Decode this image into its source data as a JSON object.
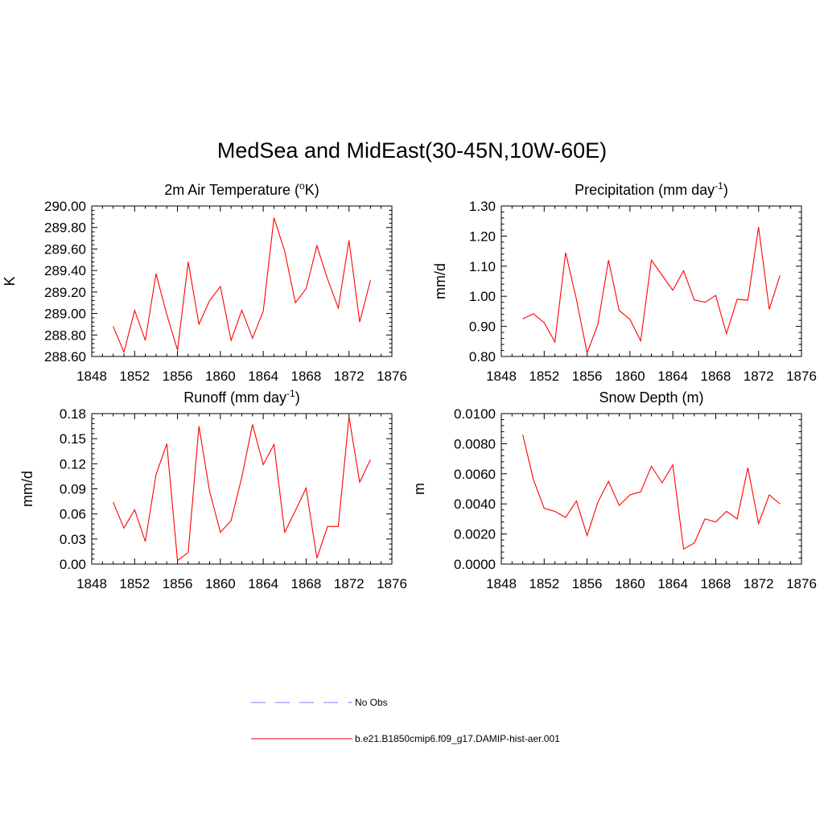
{
  "title": "MedSea and MidEast(30-45N,10W-60E)",
  "line_color": "#ff0000",
  "obs_color": "#9999ff",
  "legend": {
    "obs_label": "No Obs",
    "model_label": "b.e21.B1850cmip6.f09_g17.DAMIP-hist-aer.001"
  },
  "chart_data": [
    {
      "type": "line",
      "title": "2m Air Temperature (",
      "title_unit": "o",
      "title_suffix": "K)",
      "title_sup": "sup",
      "ylabel": "K",
      "xlim": [
        1848,
        1876
      ],
      "xticks": [
        "1848",
        "1852",
        "1856",
        "1860",
        "1864",
        "1868",
        "1872",
        "1876"
      ],
      "ylim": [
        288.6,
        290.0
      ],
      "yticks": [
        "288.60",
        "288.80",
        "289.00",
        "289.20",
        "289.40",
        "289.60",
        "289.80",
        "290.00"
      ],
      "series": [
        {
          "x": [
            1850,
            1851,
            1852,
            1853,
            1854,
            1855,
            1856,
            1857,
            1858,
            1859,
            1860,
            1861,
            1862,
            1863,
            1864,
            1865,
            1866,
            1867,
            1868,
            1869,
            1870,
            1871,
            1872,
            1873,
            1874
          ],
          "values": [
            288.88,
            288.64,
            289.03,
            288.75,
            289.37,
            288.99,
            288.66,
            289.48,
            288.9,
            289.12,
            289.25,
            288.75,
            289.03,
            288.77,
            289.02,
            289.89,
            289.58,
            289.1,
            289.23,
            289.63,
            289.32,
            289.05,
            289.68,
            288.92,
            289.31
          ]
        }
      ]
    },
    {
      "type": "line",
      "title": "Precipitation (mm day",
      "title_unit": "-1",
      "title_suffix": ")",
      "ylabel": "mm/d",
      "xlim": [
        1848,
        1876
      ],
      "xticks": [
        "1848",
        "1852",
        "1856",
        "1860",
        "1864",
        "1868",
        "1872",
        "1876"
      ],
      "ylim": [
        0.8,
        1.3
      ],
      "yticks": [
        "0.80",
        "0.90",
        "1.00",
        "1.10",
        "1.20",
        "1.30"
      ],
      "series": [
        {
          "x": [
            1850,
            1851,
            1852,
            1853,
            1854,
            1855,
            1856,
            1857,
            1858,
            1859,
            1860,
            1861,
            1862,
            1863,
            1864,
            1865,
            1866,
            1867,
            1868,
            1869,
            1870,
            1871,
            1872,
            1873,
            1874
          ],
          "values": [
            0.925,
            0.942,
            0.912,
            0.848,
            1.145,
            0.99,
            0.812,
            0.905,
            1.12,
            0.953,
            0.923,
            0.852,
            1.12,
            1.07,
            1.02,
            1.085,
            0.988,
            0.98,
            1.003,
            0.876,
            0.99,
            0.987,
            1.23,
            0.957,
            1.07
          ]
        }
      ]
    },
    {
      "type": "line",
      "title": "Runoff (mm day",
      "title_unit": "-1",
      "title_suffix": ")",
      "ylabel": "mm/d",
      "xlim": [
        1848,
        1876
      ],
      "xticks": [
        "1848",
        "1852",
        "1856",
        "1860",
        "1864",
        "1868",
        "1872",
        "1876"
      ],
      "ylim": [
        0.0,
        0.18
      ],
      "yticks": [
        "0.00",
        "0.03",
        "0.06",
        "0.09",
        "0.12",
        "0.15",
        "0.18"
      ],
      "series": [
        {
          "x": [
            1850,
            1851,
            1852,
            1853,
            1854,
            1855,
            1856,
            1857,
            1858,
            1859,
            1860,
            1861,
            1862,
            1863,
            1864,
            1865,
            1866,
            1867,
            1868,
            1869,
            1870,
            1871,
            1872,
            1873,
            1874
          ],
          "values": [
            0.074,
            0.043,
            0.065,
            0.027,
            0.107,
            0.144,
            0.004,
            0.014,
            0.165,
            0.087,
            0.038,
            0.052,
            0.104,
            0.167,
            0.119,
            0.143,
            0.038,
            0.064,
            0.091,
            0.007,
            0.045,
            0.045,
            0.176,
            0.098,
            0.125
          ]
        }
      ]
    },
    {
      "type": "line",
      "title": "Snow Depth (m)",
      "title_unit": "",
      "title_suffix": "",
      "ylabel": "m",
      "xlim": [
        1848,
        1876
      ],
      "xticks": [
        "1848",
        "1852",
        "1856",
        "1860",
        "1864",
        "1868",
        "1872",
        "1876"
      ],
      "ylim": [
        0.0,
        0.01
      ],
      "yticks": [
        "0.0000",
        "0.0020",
        "0.0040",
        "0.0060",
        "0.0080",
        "0.0100"
      ],
      "series": [
        {
          "x": [
            1850,
            1851,
            1852,
            1853,
            1854,
            1855,
            1856,
            1857,
            1858,
            1859,
            1860,
            1861,
            1862,
            1863,
            1864,
            1865,
            1866,
            1867,
            1868,
            1869,
            1870,
            1871,
            1872,
            1873,
            1874
          ],
          "values": [
            0.0086,
            0.0056,
            0.0037,
            0.0035,
            0.0031,
            0.0042,
            0.0019,
            0.0041,
            0.0055,
            0.0039,
            0.0046,
            0.0048,
            0.0065,
            0.0054,
            0.0066,
            0.001,
            0.0014,
            0.003,
            0.0028,
            0.0035,
            0.003,
            0.0064,
            0.0027,
            0.0046,
            0.004
          ]
        }
      ]
    }
  ]
}
